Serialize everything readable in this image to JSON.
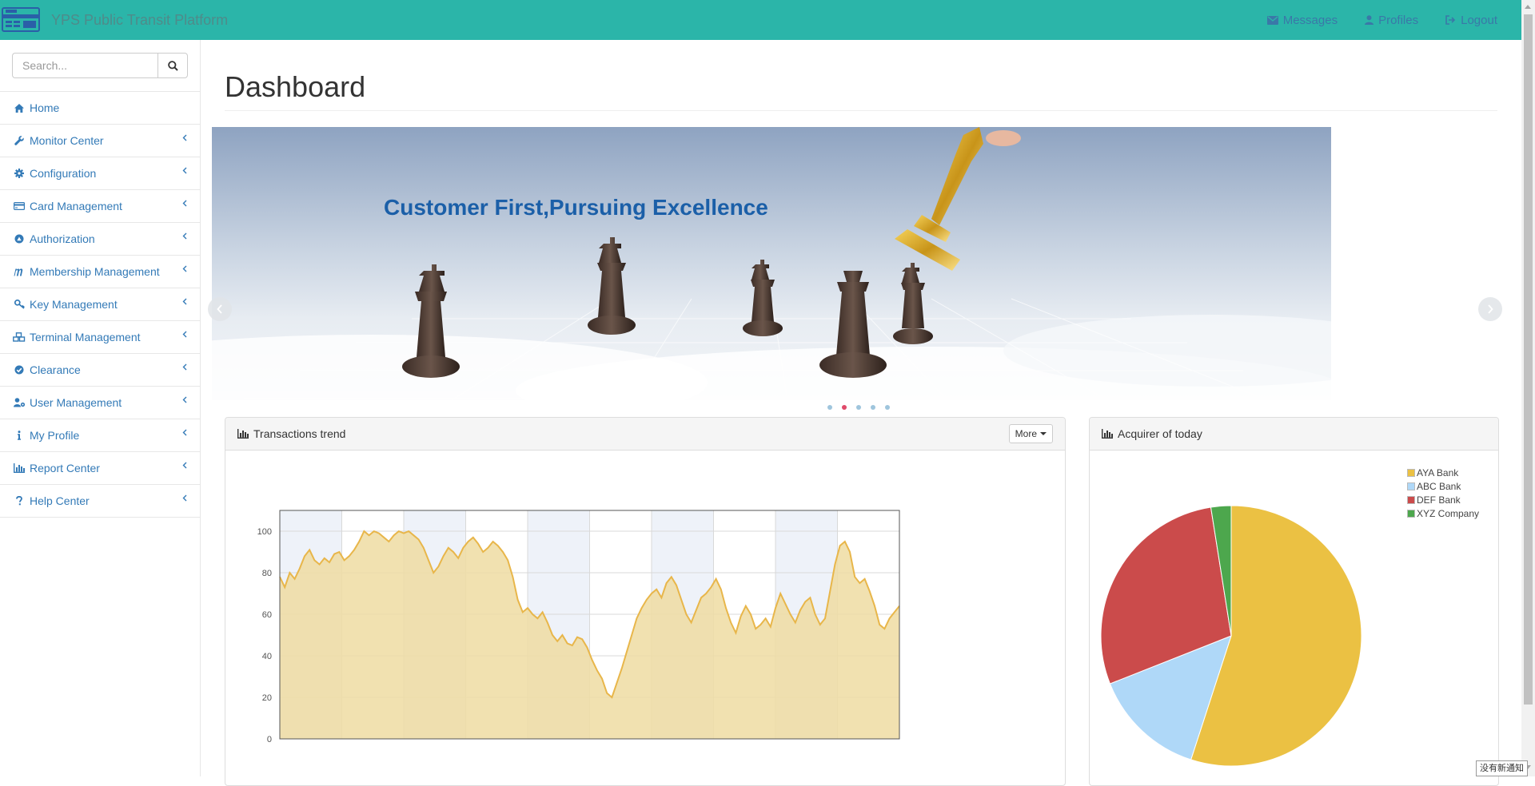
{
  "app": {
    "title": "YPS Public Transit Platform"
  },
  "nav": {
    "messages": "Messages",
    "profiles": "Profiles",
    "logout": "Logout"
  },
  "search": {
    "placeholder": "Search..."
  },
  "sidebar": {
    "items": [
      {
        "label": "Home",
        "icon": "home-icon"
      },
      {
        "label": "Monitor Center",
        "icon": "wrench-icon"
      },
      {
        "label": "Configuration",
        "icon": "gear-icon"
      },
      {
        "label": "Card Management",
        "icon": "credit-card-icon"
      },
      {
        "label": "Authorization",
        "icon": "authorization-icon"
      },
      {
        "label": "Membership Management",
        "icon": "membership-icon"
      },
      {
        "label": "Key Management",
        "icon": "key-icon"
      },
      {
        "label": "Terminal Management",
        "icon": "cubes-icon"
      },
      {
        "label": "Clearance",
        "icon": "check-circle-icon"
      },
      {
        "label": "User Management",
        "icon": "user-gear-icon"
      },
      {
        "label": "My Profile",
        "icon": "info-icon"
      },
      {
        "label": "Report Center",
        "icon": "bar-chart-icon"
      },
      {
        "label": "Help Center",
        "icon": "question-icon"
      }
    ]
  },
  "page": {
    "title": "Dashboard"
  },
  "carousel": {
    "caption": "Customer First,Pursuing Excellence",
    "slides": 5,
    "active_index": 1
  },
  "colors": {
    "navbar": "#2bb5a9",
    "link": "#337ab7",
    "trend_line": "#e8b64a",
    "trend_fill": "#efdca2"
  },
  "panels": {
    "trend": {
      "title": "Transactions trend",
      "more": "More"
    },
    "acquirer": {
      "title": "Acquirer of today"
    }
  },
  "toast": "没有新通知",
  "chart_data": [
    {
      "type": "area",
      "title": "Transactions trend",
      "ylim": [
        0,
        110
      ],
      "yticks": [
        0,
        20,
        40,
        60,
        80,
        100
      ],
      "grid": true,
      "series": [
        {
          "values": [
            78,
            73,
            80,
            77,
            82,
            88,
            91,
            86,
            84,
            87,
            85,
            89,
            90,
            86,
            88,
            91,
            95,
            100,
            98,
            100,
            99,
            97,
            95,
            98,
            100,
            99,
            100,
            98,
            96,
            92,
            86,
            80,
            83,
            88,
            92,
            90,
            87,
            92,
            95,
            97,
            94,
            90,
            92,
            95,
            93,
            90,
            86,
            78,
            67,
            61,
            63,
            60,
            58,
            61,
            56,
            50,
            47,
            50,
            46,
            45,
            49,
            48,
            44,
            38,
            33,
            29,
            22,
            20,
            27,
            34,
            42,
            50,
            58,
            63,
            67,
            70,
            72,
            68,
            75,
            78,
            74,
            67,
            60,
            56,
            62,
            68,
            70,
            73,
            77,
            72,
            63,
            56,
            51,
            59,
            64,
            60,
            53,
            55,
            58,
            54,
            63,
            70,
            65,
            60,
            56,
            62,
            66,
            68,
            60,
            55,
            58,
            71,
            84,
            93,
            95,
            90,
            78,
            75,
            77,
            71,
            64,
            55,
            53,
            58,
            61,
            64
          ]
        }
      ]
    },
    {
      "type": "pie",
      "title": "Acquirer of today",
      "legend": "top-right",
      "categories": [
        "AYA Bank",
        "ABC Bank",
        "DEF Bank",
        "XYZ Company"
      ],
      "values": [
        55,
        14,
        28.5,
        2.5
      ],
      "colors": [
        "#ebc143",
        "#afd8f8",
        "#cb4b4b",
        "#4da74d"
      ]
    }
  ]
}
